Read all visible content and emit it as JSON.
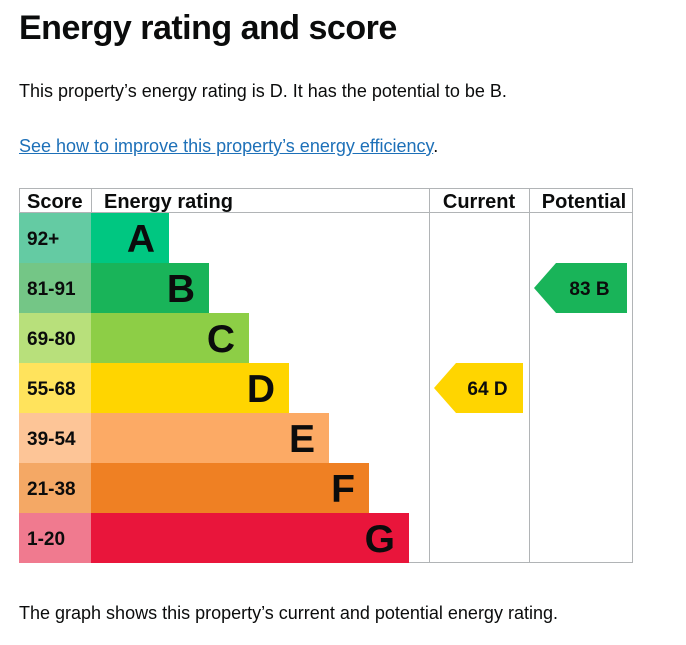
{
  "page": {
    "title": "Energy rating and score",
    "intro": "This property’s energy rating is D. It has the potential to be B.",
    "improve_link": "See how to improve this property’s energy efficiency",
    "improve_suffix": ".",
    "caption": "The graph shows this property’s current and potential energy rating."
  },
  "colors": {
    "link": "#1d70b8",
    "border": "#b1b4b6"
  },
  "chart_data": {
    "type": "table",
    "columns": {
      "score": "Score",
      "rating": "Energy rating",
      "current": "Current",
      "potential": "Potential"
    },
    "bands": [
      {
        "letter": "A",
        "range": "92+",
        "color": "#00c781",
        "score_bg": "#64cba3",
        "letter_color": "#0b0c0c"
      },
      {
        "letter": "B",
        "range": "81-91",
        "color": "#19b459",
        "score_bg": "#74c686",
        "letter_color": "#0b0c0c"
      },
      {
        "letter": "C",
        "range": "69-80",
        "color": "#8dce46",
        "score_bg": "#b8e07b",
        "letter_color": "#0b0c0c"
      },
      {
        "letter": "D",
        "range": "55-68",
        "color": "#ffd500",
        "score_bg": "#ffe35c",
        "letter_color": "#0b0c0c"
      },
      {
        "letter": "E",
        "range": "39-54",
        "color": "#fcaa65",
        "score_bg": "#fdc597",
        "letter_color": "#0b0c0c"
      },
      {
        "letter": "F",
        "range": "21-38",
        "color": "#ef8023",
        "score_bg": "#f4a865",
        "letter_color": "#0b0c0c"
      },
      {
        "letter": "G",
        "range": "1-20",
        "color": "#e9153b",
        "score_bg": "#f07a8f",
        "letter_color": "#0b0c0c"
      }
    ],
    "current": {
      "score": 64,
      "band": "D",
      "label": "64 D",
      "color": "#ffd500"
    },
    "potential": {
      "score": 83,
      "band": "B",
      "label": "83 B",
      "color": "#19b459"
    }
  }
}
